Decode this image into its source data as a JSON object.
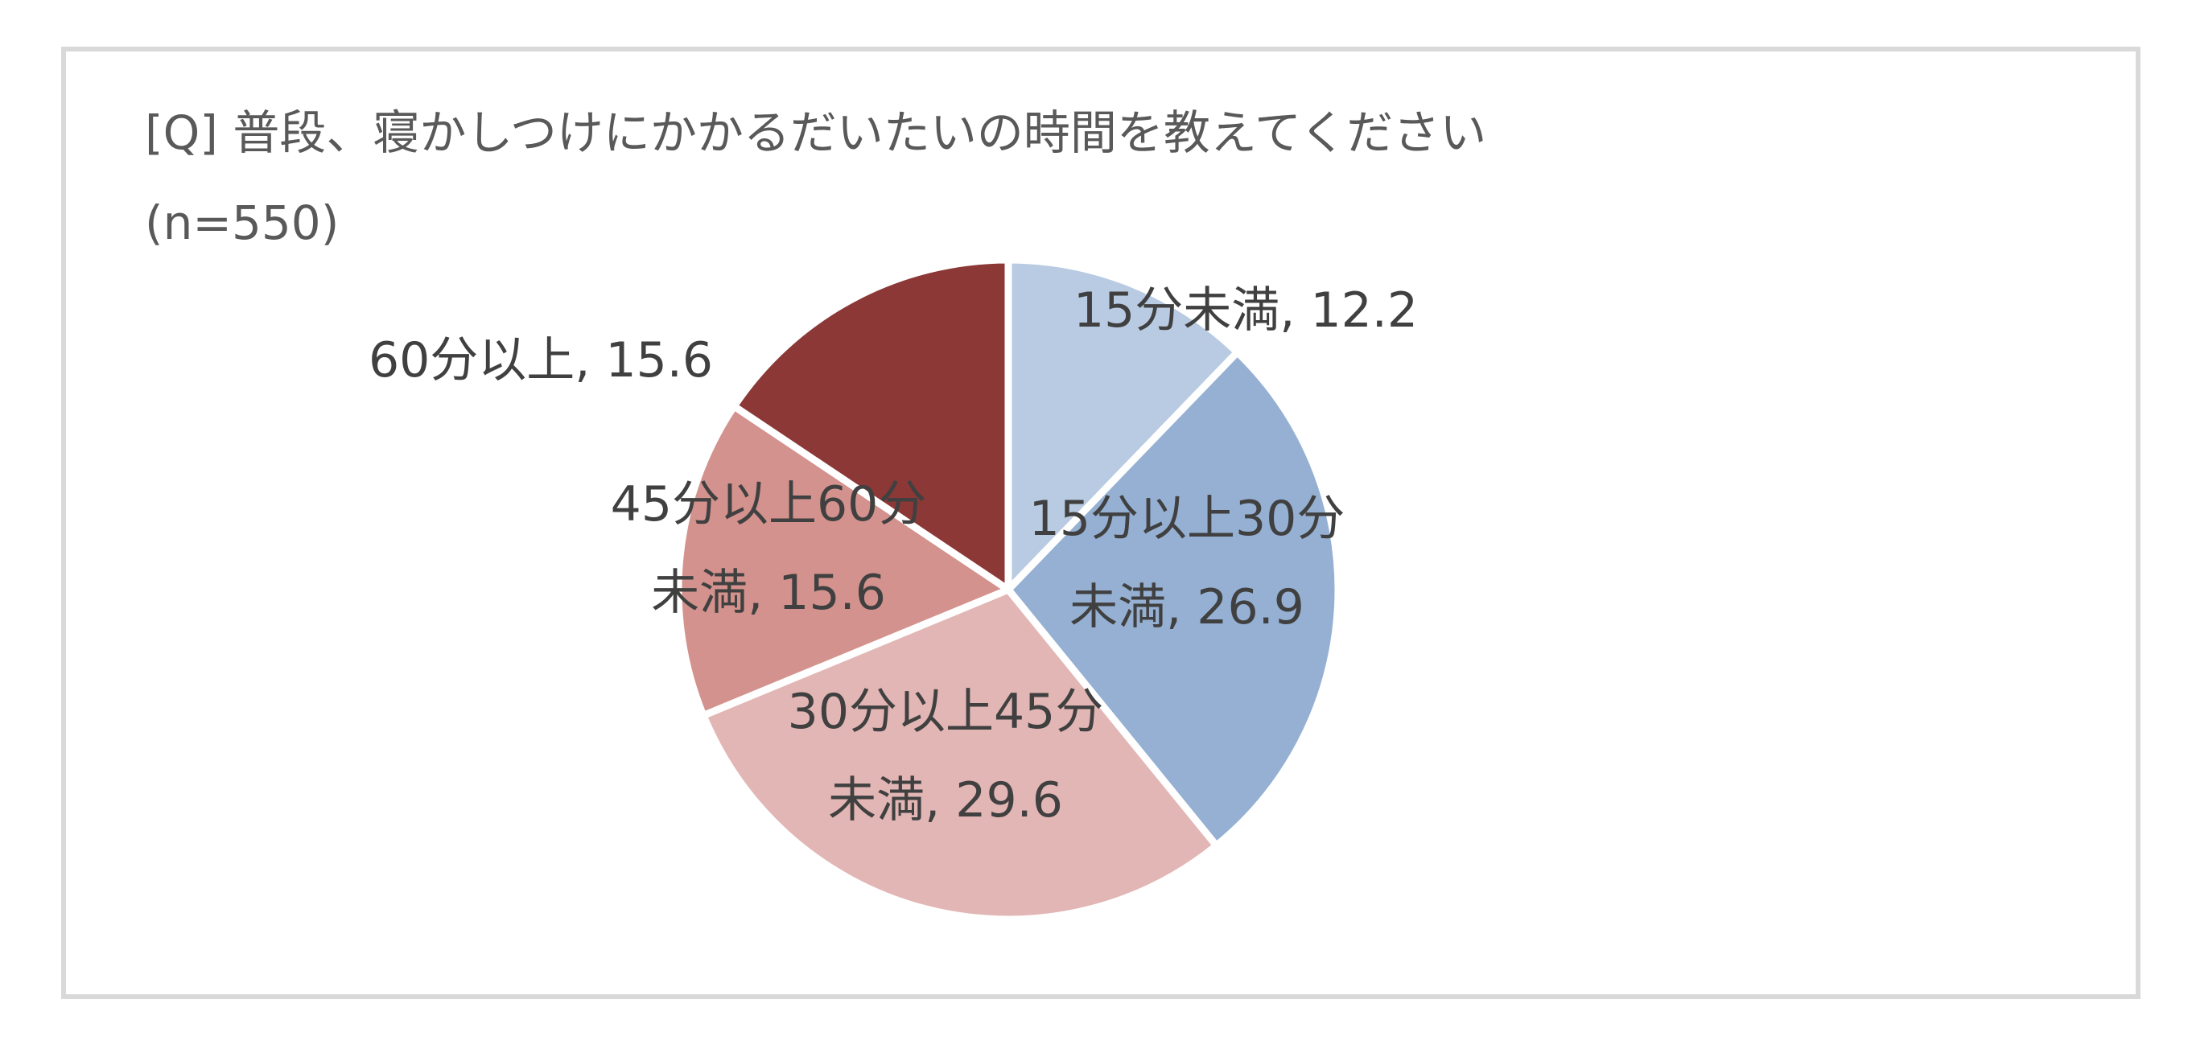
{
  "chart_data": {
    "type": "pie",
    "title": "[Q] 普段、寝かしつけにかかるだいたいの時間を教えてください",
    "subtitle": "(n=550)",
    "start_angle_deg": 0,
    "direction": "clockwise",
    "slices": [
      {
        "label": "15分未満",
        "value": 12.2,
        "label_lines": [
          "15分未満, 12.2"
        ],
        "color": "#b9cbe2"
      },
      {
        "label": "15分以上30分未満",
        "value": 26.9,
        "label_lines": [
          "15分以上30分",
          "未満, 26.9"
        ],
        "color": "#95b0d2"
      },
      {
        "label": "30分以上45分未満",
        "value": 29.6,
        "label_lines": [
          "30分以上45分",
          "未満, 29.6"
        ],
        "color": "#e2b6b4"
      },
      {
        "label": "45分以上60分未満",
        "value": 15.6,
        "label_lines": [
          "45分以上60分",
          "未満, 15.6"
        ],
        "color": "#d3928d"
      },
      {
        "label": "60分以上",
        "value": 15.6,
        "label_lines": [
          "60分以上, 15.6"
        ],
        "color": "#8b3836"
      }
    ]
  }
}
